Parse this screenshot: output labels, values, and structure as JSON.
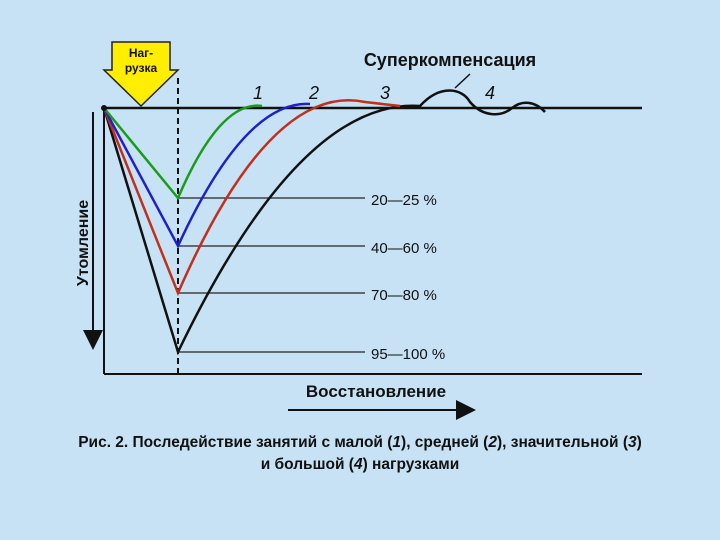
{
  "load_label_line1": "Наг-",
  "load_label_line2": "рузка",
  "supercompensation_label": "Суперкомпенсация",
  "fatigue_axis_label": "Утомление",
  "recovery_axis_label": "Восстановление",
  "curve_numbers": [
    "1",
    "2",
    "3",
    "4"
  ],
  "levels": [
    {
      "label": "20—25 %",
      "color": "#1a9c1a"
    },
    {
      "label": "40—60 %",
      "color": "#1f1fcc"
    },
    {
      "label": "70—80 %",
      "color": "#c0301c"
    },
    {
      "label": "95—100 %",
      "color": "#111111"
    }
  ],
  "caption": {
    "prefix": "Рис. 2. Последействие занятий с малой (",
    "n1": "1",
    "part2": "), средней (",
    "n2": "2",
    "part3": "), значительной (",
    "n3": "3",
    "part4": ")",
    "part5": "и большой (",
    "n4": "4",
    "part6": ") нагрузками"
  },
  "colors": {
    "background": "#c7e2f4",
    "arrow_fill": "#ffee00",
    "axis": "#111111"
  }
}
